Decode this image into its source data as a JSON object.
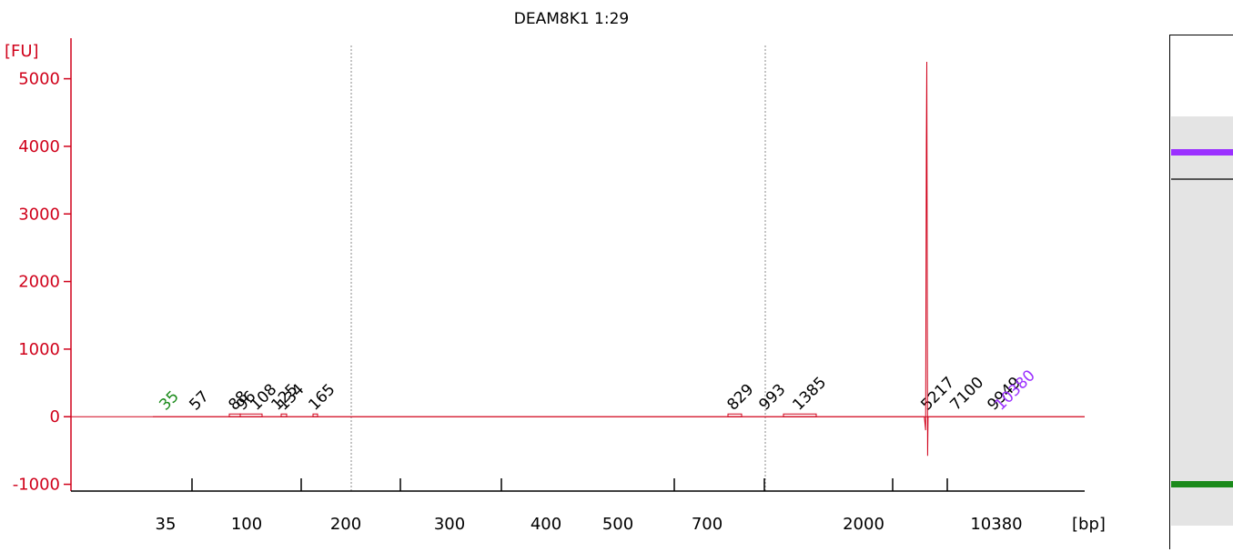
{
  "chart_data": {
    "type": "line",
    "title": "DEAM8K1 1:29",
    "ylabel": "[FU]",
    "xlabel": "[bp]",
    "ylim": [
      -1100,
      5600
    ],
    "y_ticks": [
      -1000,
      0,
      1000,
      2000,
      3000,
      4000,
      5000
    ],
    "x_tick_labels": [
      "35",
      "100",
      "200",
      "300",
      "400",
      "500",
      "700",
      "2000",
      "10380"
    ],
    "gridlines_bp": [
      200,
      993
    ],
    "colors": {
      "axis": "#d0021b",
      "trace": "#d0021b",
      "lower_marker": "#1a8a1a",
      "upper_marker": "#9b30ff",
      "peak_label": "#000000"
    },
    "peak_labels": [
      {
        "text": "35",
        "bp": 35,
        "color": "#1a8a1a"
      },
      {
        "text": "57",
        "bp": 57,
        "color": "#000000"
      },
      {
        "text": "88",
        "bp": 88,
        "color": "#000000"
      },
      {
        "text": "96",
        "bp": 96,
        "color": "#000000"
      },
      {
        "text": "108",
        "bp": 108,
        "color": "#000000"
      },
      {
        "text": "125",
        "bp": 125,
        "color": "#000000"
      },
      {
        "text": "134",
        "bp": 134,
        "color": "#000000"
      },
      {
        "text": "165",
        "bp": 165,
        "color": "#000000"
      },
      {
        "text": "829",
        "bp": 829,
        "color": "#000000"
      },
      {
        "text": "993",
        "bp": 993,
        "color": "#000000"
      },
      {
        "text": "1385",
        "bp": 1385,
        "color": "#000000"
      },
      {
        "text": "5217",
        "bp": 5217,
        "color": "#000000"
      },
      {
        "text": "7100",
        "bp": 7100,
        "color": "#000000"
      },
      {
        "text": "9949",
        "bp": 9949,
        "color": "#000000"
      },
      {
        "text": "10380",
        "bp": 10380,
        "color": "#9b30ff"
      }
    ],
    "trace": [
      {
        "bp": 30,
        "fu": 0
      },
      {
        "bp": 5100,
        "fu": 0
      },
      {
        "bp": 5150,
        "fu": -200
      },
      {
        "bp": 5180,
        "fu": 4000
      },
      {
        "bp": 5200,
        "fu": 5250
      },
      {
        "bp": 5217,
        "fu": 2100
      },
      {
        "bp": 5240,
        "fu": -580
      },
      {
        "bp": 5270,
        "fu": 0
      },
      {
        "bp": 16000,
        "fu": 0
      }
    ]
  },
  "gel": {
    "bands": [
      {
        "name": "upper-marker",
        "color": "#9b30ff"
      },
      {
        "name": "main-band",
        "color": "#555555"
      },
      {
        "name": "lower-marker",
        "color": "#1a8a1a"
      }
    ]
  }
}
